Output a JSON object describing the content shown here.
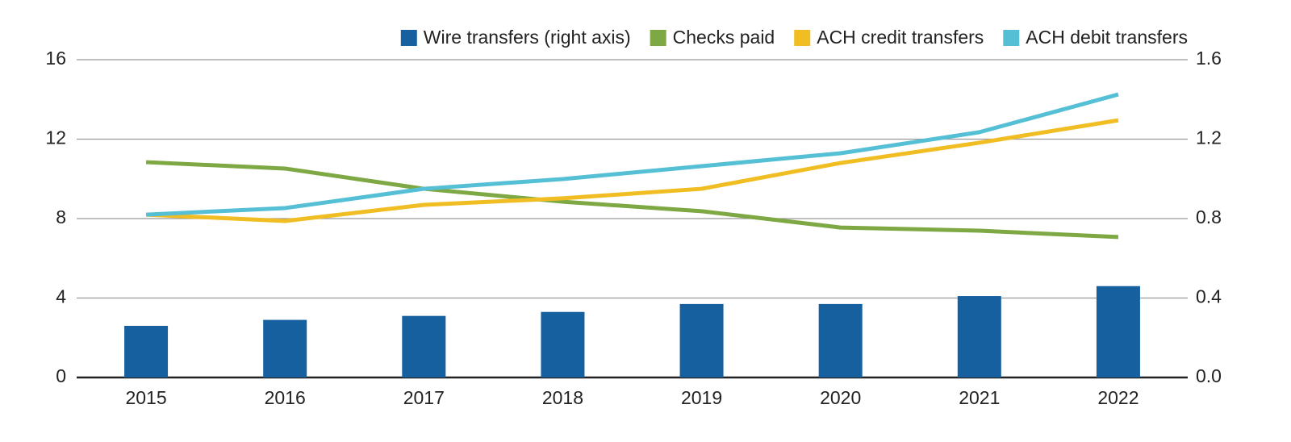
{
  "chart_data": {
    "type": "combo",
    "categories": [
      "2015",
      "2016",
      "2017",
      "2018",
      "2019",
      "2020",
      "2021",
      "2022"
    ],
    "series": [
      {
        "name": "Wire transfers (right axis)",
        "type": "bar",
        "axis": "y2",
        "color": "#1660a0",
        "values": [
          0.26,
          0.29,
          0.31,
          0.33,
          0.37,
          0.37,
          0.41,
          0.46
        ]
      },
      {
        "name": "Checks paid",
        "type": "line",
        "color": "#7ea843",
        "values": [
          10.84,
          10.52,
          9.5,
          8.85,
          8.37,
          7.55,
          7.39,
          7.07
        ]
      },
      {
        "name": "ACH credit transfers",
        "type": "line",
        "color": "#f0bd22",
        "values": [
          8.2,
          7.88,
          8.69,
          9.02,
          9.5,
          10.8,
          11.82,
          12.95
        ]
      },
      {
        "name": "ACH debit transfers",
        "type": "line",
        "color": "#55bfd6",
        "values": [
          8.2,
          8.53,
          9.5,
          9.99,
          10.64,
          11.29,
          12.35,
          14.25
        ]
      }
    ],
    "ylim": [
      0,
      16
    ],
    "yticks": [
      0,
      4,
      8,
      12,
      16
    ],
    "y2lim": [
      0,
      1.6
    ],
    "y2ticks": [
      {
        "value": 0,
        "label": "0.0"
      },
      0.4,
      0.8,
      1.2,
      1.6
    ],
    "grid": true,
    "legend": "top-right"
  }
}
